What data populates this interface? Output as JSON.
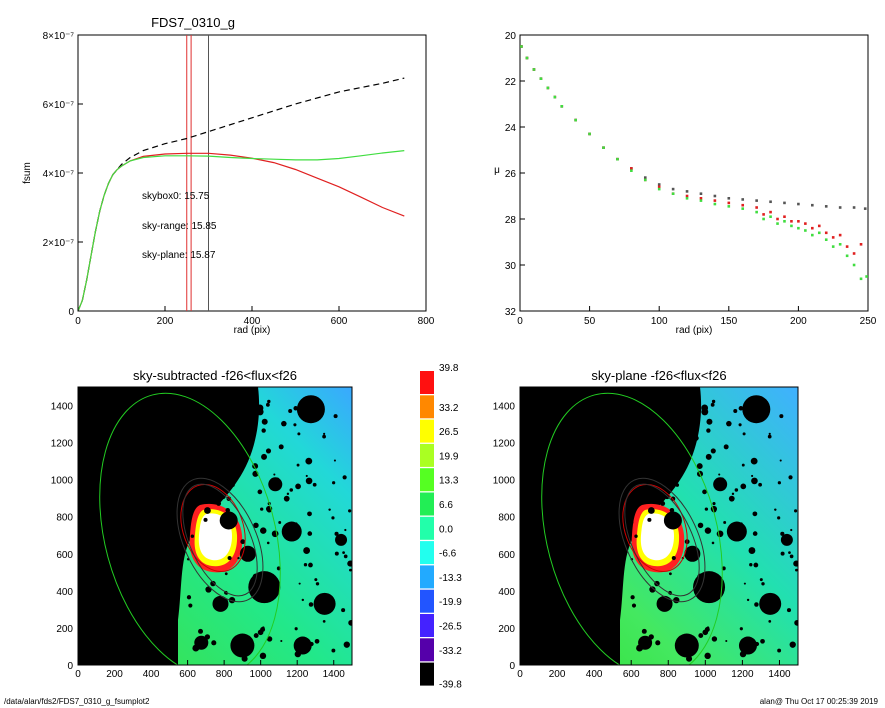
{
  "footer": {
    "left": "/data/alan/fds2/FDS7_0310_g_fsumplot2",
    "right": "alan@  Thu Oct 17 00:25:39 2019"
  },
  "chart_data": [
    {
      "type": "line",
      "title": "FDS7_0310_g",
      "xlabel": "rad (pix)",
      "ylabel": "fsum",
      "xlim": [
        0,
        800
      ],
      "ylim": [
        0,
        8e-07
      ],
      "x_ticks": [
        "0",
        "200",
        "400",
        "600",
        "800"
      ],
      "y_ticks": [
        "0",
        "2×10⁻⁷",
        "4×10⁻⁷",
        "6×10⁻⁷",
        "8×10⁻⁷"
      ],
      "vertical_lines": [
        {
          "x": 250,
          "color": "#e03030"
        },
        {
          "x": 260,
          "color": "#e03030"
        },
        {
          "x": 300,
          "color": "#555555"
        }
      ],
      "annotations": [
        {
          "text": "skybox0: 15.75",
          "color": "#000000"
        },
        {
          "text": "sky-range: 15.85",
          "color": "#e02020"
        },
        {
          "text": "sky-plane: 15.87",
          "color": "#40dd40"
        }
      ],
      "series": [
        {
          "style": "dashed",
          "color": "#000000",
          "x": [
            0,
            10,
            20,
            30,
            40,
            50,
            60,
            70,
            80,
            90,
            100,
            120,
            150,
            200,
            250,
            300,
            400,
            500,
            600,
            700,
            750
          ],
          "y": [
            0,
            3e-08,
            9e-08,
            1.6e-07,
            2.3e-07,
            2.9e-07,
            3.35e-07,
            3.7e-07,
            3.95e-07,
            4.1e-07,
            4.25e-07,
            4.45e-07,
            4.65e-07,
            4.85e-07,
            5e-07,
            5.2e-07,
            5.6e-07,
            6e-07,
            6.35e-07,
            6.6e-07,
            6.75e-07
          ]
        },
        {
          "style": "solid",
          "color": "#e02020",
          "x": [
            0,
            10,
            20,
            30,
            40,
            50,
            60,
            70,
            80,
            90,
            100,
            120,
            150,
            200,
            250,
            300,
            350,
            400,
            450,
            500,
            550,
            600,
            650,
            700,
            750
          ],
          "y": [
            0,
            3e-08,
            9e-08,
            1.6e-07,
            2.3e-07,
            2.9e-07,
            3.35e-07,
            3.7e-07,
            3.95e-07,
            4.1e-07,
            4.2e-07,
            4.35e-07,
            4.48e-07,
            4.55e-07,
            4.57e-07,
            4.57e-07,
            4.52e-07,
            4.43e-07,
            4.3e-07,
            4.1e-07,
            3.85e-07,
            3.6e-07,
            3.3e-07,
            3e-07,
            2.75e-07
          ]
        },
        {
          "style": "solid",
          "color": "#40dd40",
          "x": [
            0,
            10,
            20,
            30,
            40,
            50,
            60,
            70,
            80,
            90,
            100,
            120,
            150,
            200,
            250,
            300,
            350,
            400,
            450,
            500,
            550,
            600,
            650,
            700,
            750
          ],
          "y": [
            0,
            3e-08,
            9e-08,
            1.6e-07,
            2.3e-07,
            2.9e-07,
            3.35e-07,
            3.7e-07,
            3.95e-07,
            4.1e-07,
            4.2e-07,
            4.35e-07,
            4.45e-07,
            4.5e-07,
            4.5e-07,
            4.49e-07,
            4.45e-07,
            4.42e-07,
            4.4e-07,
            4.38e-07,
            4.38e-07,
            4.42e-07,
            4.5e-07,
            4.58e-07,
            4.65e-07
          ]
        }
      ]
    },
    {
      "type": "scatter",
      "title": "",
      "xlabel": "rad (pix)",
      "ylabel": "μ",
      "xlim": [
        0,
        250
      ],
      "ylim": [
        32,
        20
      ],
      "x_ticks": [
        "0",
        "50",
        "100",
        "150",
        "200",
        "250"
      ],
      "y_ticks": [
        "20",
        "22",
        "24",
        "26",
        "28",
        "30",
        "32"
      ],
      "series": [
        {
          "color": "#555555",
          "x": [
            1,
            5,
            10,
            15,
            20,
            25,
            30,
            40,
            50,
            60,
            70,
            80,
            90,
            100,
            110,
            120,
            130,
            140,
            150,
            160,
            170,
            180,
            190,
            200,
            210,
            220,
            230,
            240,
            248
          ],
          "y": [
            20.5,
            21.0,
            21.5,
            21.9,
            22.3,
            22.7,
            23.1,
            23.7,
            24.3,
            24.9,
            25.4,
            25.8,
            26.2,
            26.5,
            26.7,
            26.8,
            26.9,
            27.0,
            27.1,
            27.15,
            27.2,
            27.25,
            27.3,
            27.35,
            27.4,
            27.45,
            27.5,
            27.5,
            27.55
          ]
        },
        {
          "color": "#e02020",
          "x": [
            1,
            5,
            10,
            15,
            20,
            25,
            30,
            40,
            50,
            60,
            70,
            80,
            90,
            100,
            110,
            120,
            130,
            140,
            150,
            160,
            170,
            175,
            180,
            185,
            190,
            195,
            200,
            205,
            210,
            215,
            220,
            225,
            230,
            235,
            240,
            245
          ],
          "y": [
            20.5,
            21.0,
            21.5,
            21.9,
            22.3,
            22.7,
            23.1,
            23.7,
            24.3,
            24.9,
            25.4,
            25.8,
            26.3,
            26.6,
            26.9,
            27.0,
            27.1,
            27.2,
            27.3,
            27.4,
            27.5,
            27.8,
            27.7,
            28.0,
            27.9,
            28.1,
            28.1,
            28.2,
            28.4,
            28.3,
            28.6,
            28.8,
            28.7,
            29.2,
            29.5,
            29.1
          ]
        },
        {
          "color": "#40dd40",
          "x": [
            1,
            5,
            10,
            15,
            20,
            25,
            30,
            40,
            50,
            60,
            70,
            80,
            90,
            100,
            110,
            120,
            130,
            140,
            150,
            160,
            170,
            175,
            180,
            185,
            190,
            195,
            200,
            205,
            210,
            215,
            220,
            225,
            230,
            235,
            240,
            245,
            249
          ],
          "y": [
            20.5,
            21.0,
            21.5,
            21.9,
            22.3,
            22.7,
            23.1,
            23.7,
            24.3,
            24.9,
            25.4,
            25.9,
            26.3,
            26.7,
            26.9,
            27.1,
            27.2,
            27.35,
            27.45,
            27.55,
            27.7,
            28.0,
            27.9,
            28.2,
            28.1,
            28.3,
            28.4,
            28.5,
            28.7,
            28.6,
            28.9,
            29.2,
            29.1,
            29.6,
            30.0,
            30.6,
            30.5
          ]
        }
      ]
    },
    {
      "type": "heatmap",
      "title": "sky-subtracted -f26<flux<f26",
      "xlim": [
        0,
        1500
      ],
      "ylim": [
        0,
        1500
      ],
      "x_ticks": [
        "0",
        "200",
        "400",
        "600",
        "800",
        "1000",
        "1200",
        "1400"
      ],
      "y_ticks": [
        "0",
        "200",
        "400",
        "600",
        "800",
        "1000",
        "1200",
        "1400"
      ]
    },
    {
      "type": "heatmap",
      "title": "sky-plane -f26<flux<f26",
      "xlim": [
        0,
        1500
      ],
      "ylim": [
        0,
        1500
      ],
      "x_ticks": [
        "0",
        "200",
        "400",
        "600",
        "800",
        "1000",
        "1200",
        "1400"
      ],
      "y_ticks": [
        "0",
        "200",
        "400",
        "600",
        "800",
        "1000",
        "1200",
        "1400"
      ]
    },
    {
      "type": "colorbar",
      "levels": [
        "39.8",
        "33.2",
        "26.5",
        "19.9",
        "13.3",
        "6.6",
        "0.0",
        "-6.6",
        "-13.3",
        "-19.9",
        "-26.5",
        "-33.2",
        "-39.8"
      ],
      "colors": [
        "#ff1010",
        "#ff8800",
        "#ffff00",
        "#aaff22",
        "#55ff22",
        "#22ee55",
        "#22ffaa",
        "#22ffee",
        "#22aaff",
        "#2255ff",
        "#4422ff",
        "#5500aa",
        "#000000"
      ]
    }
  ]
}
